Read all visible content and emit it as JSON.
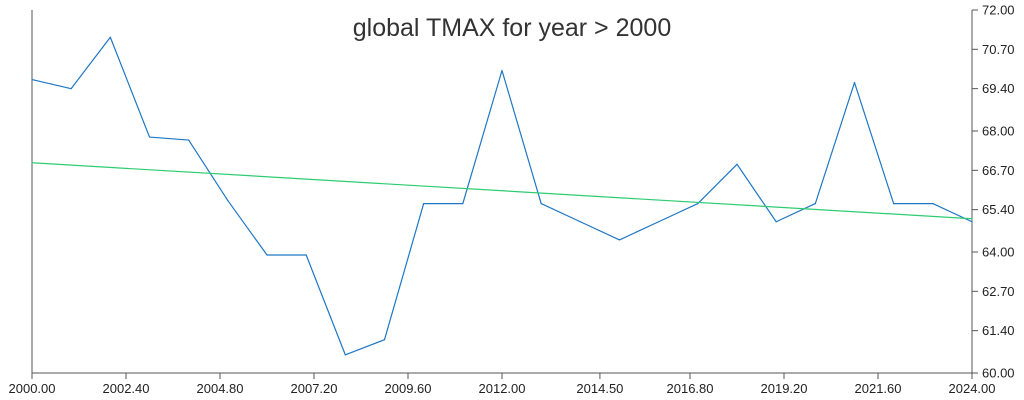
{
  "chart_data": {
    "type": "line",
    "title": "global TMAX for year > 2000",
    "xlabel": "",
    "ylabel": "",
    "xlim": [
      2000,
      2024
    ],
    "ylim": [
      60,
      72
    ],
    "x_ticks": [
      "2000.00",
      "2002.40",
      "2004.80",
      "2007.20",
      "2009.60",
      "2012.00",
      "2014.50",
      "2016.80",
      "2019.20",
      "2021.60",
      "2024.00"
    ],
    "y_ticks": [
      "60.00",
      "61.40",
      "62.70",
      "64.00",
      "65.40",
      "66.70",
      "68.00",
      "69.40",
      "70.70",
      "72.00"
    ],
    "y_axis_side": "right",
    "grid": false,
    "series": [
      {
        "color": "#1f77c4",
        "points": [
          [
            2000,
            69.7
          ],
          [
            2001,
            69.4
          ],
          [
            2002,
            71.1
          ],
          [
            2003,
            67.8
          ],
          [
            2004,
            67.7
          ],
          [
            2005,
            65.7
          ],
          [
            2006,
            63.9
          ],
          [
            2007,
            63.9
          ],
          [
            2008,
            60.6
          ],
          [
            2009,
            61.1
          ],
          [
            2010,
            65.6
          ],
          [
            2011,
            65.6
          ],
          [
            2012,
            70.0
          ],
          [
            2013,
            65.6
          ],
          [
            2014,
            65.0
          ],
          [
            2015,
            64.4
          ],
          [
            2016,
            65.0
          ],
          [
            2017,
            65.6
          ],
          [
            2018,
            66.9
          ],
          [
            2019,
            65.0
          ],
          [
            2020,
            65.6
          ],
          [
            2021,
            69.6
          ],
          [
            2022,
            65.6
          ],
          [
            2023,
            65.6
          ],
          [
            2024,
            65.0
          ]
        ]
      },
      {
        "color": "#2ecc71",
        "points": [
          [
            2000,
            66.95
          ],
          [
            2024,
            65.1
          ]
        ]
      }
    ]
  }
}
